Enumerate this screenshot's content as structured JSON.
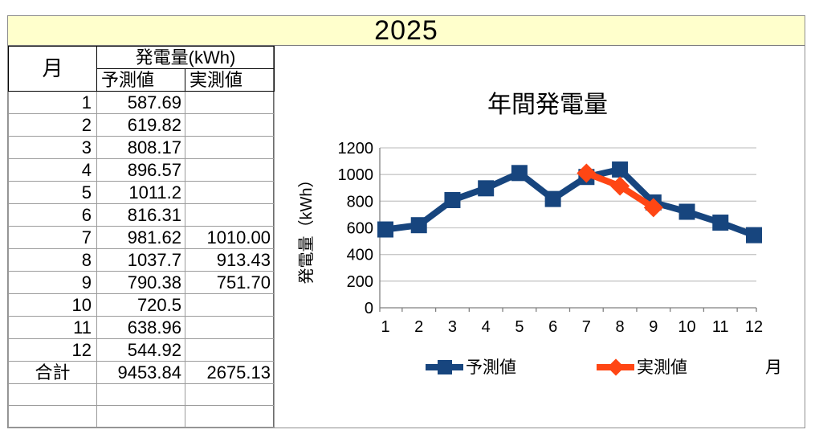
{
  "banner": {
    "year": "2025"
  },
  "colors": {
    "banner_bg": "#FFFFCC",
    "forecast_blue": "#17457E",
    "actual_orange": "#FF4614"
  },
  "table": {
    "month_header": "月",
    "generation_header": "発電量(kWh)",
    "forecast_header": "予測値",
    "actual_header": "実測値",
    "rows": [
      {
        "month": "1",
        "forecast": "587.69",
        "actual": ""
      },
      {
        "month": "2",
        "forecast": "619.82",
        "actual": ""
      },
      {
        "month": "3",
        "forecast": "808.17",
        "actual": ""
      },
      {
        "month": "4",
        "forecast": "896.57",
        "actual": ""
      },
      {
        "month": "5",
        "forecast": "1011.2",
        "actual": ""
      },
      {
        "month": "6",
        "forecast": "816.31",
        "actual": ""
      },
      {
        "month": "7",
        "forecast": "981.62",
        "actual": "1010.00"
      },
      {
        "month": "8",
        "forecast": "1037.7",
        "actual": "913.43"
      },
      {
        "month": "9",
        "forecast": "790.38",
        "actual": "751.70"
      },
      {
        "month": "10",
        "forecast": "720.5",
        "actual": ""
      },
      {
        "month": "11",
        "forecast": "638.96",
        "actual": ""
      },
      {
        "month": "12",
        "forecast": "544.92",
        "actual": ""
      }
    ],
    "total": {
      "label": "合計",
      "forecast": "9453.84",
      "actual": "2675.13"
    },
    "trailing_empty_rows": 2
  },
  "chart_data": {
    "type": "line",
    "title": "年間発電量",
    "xlabel": "月",
    "ylabel": "発電量（kWh）",
    "x": [
      1,
      2,
      3,
      4,
      5,
      6,
      7,
      8,
      9,
      10,
      11,
      12
    ],
    "ylim": [
      0,
      1200
    ],
    "ytick_step": 200,
    "grid": true,
    "grid_color": "#C8C8C8",
    "axis_color": "#808080",
    "legend_position": "bottom",
    "series": [
      {
        "name": "予測値",
        "color": "#17457E",
        "marker": "square",
        "x": [
          1,
          2,
          3,
          4,
          5,
          6,
          7,
          8,
          9,
          10,
          11,
          12
        ],
        "values": [
          587.69,
          619.82,
          808.17,
          896.57,
          1011.2,
          816.31,
          981.62,
          1037.7,
          790.38,
          720.5,
          638.96,
          544.92
        ]
      },
      {
        "name": "実測値",
        "color": "#FF4614",
        "marker": "diamond",
        "x": [
          7,
          8,
          9
        ],
        "values": [
          1010.0,
          913.43,
          751.7
        ]
      }
    ]
  }
}
